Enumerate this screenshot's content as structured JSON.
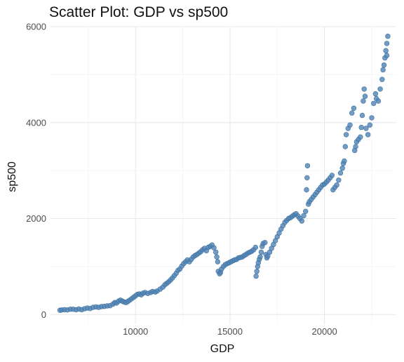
{
  "chart_data": {
    "type": "scatter",
    "title": "Scatter Plot: GDP vs sp500",
    "xlabel": "GDP",
    "ylabel": "sp500",
    "xlim": [
      5500,
      23800
    ],
    "ylim": [
      -200,
      6000
    ],
    "x_ticks": [
      10000,
      15000,
      20000
    ],
    "x_tick_labels": [
      "10000",
      "15000",
      "20000"
    ],
    "y_ticks": [
      0,
      2000,
      4000,
      6000
    ],
    "y_tick_labels": [
      "0",
      "2000",
      "4000",
      "6000"
    ],
    "grid": true,
    "point_color": "#4f83b5",
    "point_stroke": "#3d6f9e",
    "points": [
      [
        6000,
        90
      ],
      [
        6100,
        95
      ],
      [
        6250,
        100
      ],
      [
        6400,
        95
      ],
      [
        6550,
        110
      ],
      [
        6700,
        110
      ],
      [
        6850,
        100
      ],
      [
        7000,
        115
      ],
      [
        7150,
        100
      ],
      [
        7300,
        120
      ],
      [
        7450,
        135
      ],
      [
        7600,
        125
      ],
      [
        7750,
        150
      ],
      [
        7900,
        160
      ],
      [
        8050,
        150
      ],
      [
        8200,
        165
      ],
      [
        8350,
        170
      ],
      [
        8500,
        180
      ],
      [
        8650,
        185
      ],
      [
        8800,
        215
      ],
      [
        8900,
        250
      ],
      [
        9000,
        240
      ],
      [
        9100,
        280
      ],
      [
        9200,
        300
      ],
      [
        9300,
        280
      ],
      [
        9400,
        260
      ],
      [
        9500,
        250
      ],
      [
        9600,
        275
      ],
      [
        9700,
        300
      ],
      [
        9800,
        330
      ],
      [
        9900,
        360
      ],
      [
        10000,
        390
      ],
      [
        10100,
        420
      ],
      [
        10200,
        430
      ],
      [
        10300,
        410
      ],
      [
        10400,
        445
      ],
      [
        10500,
        460
      ],
      [
        10650,
        440
      ],
      [
        10800,
        460
      ],
      [
        10900,
        480
      ],
      [
        11050,
        470
      ],
      [
        11150,
        490
      ],
      [
        11300,
        530
      ],
      [
        11450,
        570
      ],
      [
        11550,
        620
      ],
      [
        11650,
        650
      ],
      [
        11750,
        680
      ],
      [
        11850,
        720
      ],
      [
        11950,
        760
      ],
      [
        12050,
        810
      ],
      [
        12150,
        860
      ],
      [
        12250,
        920
      ],
      [
        12350,
        950
      ],
      [
        12450,
        1010
      ],
      [
        12550,
        1060
      ],
      [
        12650,
        1100
      ],
      [
        12750,
        1140
      ],
      [
        12850,
        1100
      ],
      [
        12950,
        1150
      ],
      [
        13050,
        1200
      ],
      [
        13150,
        1230
      ],
      [
        13250,
        1250
      ],
      [
        13350,
        1280
      ],
      [
        13450,
        1310
      ],
      [
        13550,
        1350
      ],
      [
        13650,
        1380
      ],
      [
        13750,
        1330
      ],
      [
        13850,
        1400
      ],
      [
        13950,
        1420
      ],
      [
        14050,
        1450
      ],
      [
        14150,
        1390
      ],
      [
        14250,
        1300
      ],
      [
        14300,
        1200
      ],
      [
        14350,
        1100
      ],
      [
        14380,
        900
      ],
      [
        14450,
        850
      ],
      [
        14500,
        880
      ],
      [
        14550,
        950
      ],
      [
        14650,
        1000
      ],
      [
        14750,
        1040
      ],
      [
        14850,
        1060
      ],
      [
        14950,
        1080
      ],
      [
        15050,
        1100
      ],
      [
        15150,
        1120
      ],
      [
        15250,
        1140
      ],
      [
        15350,
        1150
      ],
      [
        15450,
        1180
      ],
      [
        15550,
        1190
      ],
      [
        15650,
        1200
      ],
      [
        15750,
        1230
      ],
      [
        15850,
        1250
      ],
      [
        15950,
        1280
      ],
      [
        16050,
        1300
      ],
      [
        16150,
        1320
      ],
      [
        16250,
        1350
      ],
      [
        16350,
        1400
      ],
      [
        16380,
        800
      ],
      [
        16420,
        900
      ],
      [
        16460,
        1000
      ],
      [
        16500,
        1080
      ],
      [
        16550,
        1150
      ],
      [
        16600,
        1200
      ],
      [
        16650,
        1300
      ],
      [
        16700,
        1420
      ],
      [
        16750,
        1480
      ],
      [
        16850,
        1500
      ],
      [
        16900,
        1250
      ],
      [
        16950,
        1180
      ],
      [
        17000,
        1220
      ],
      [
        17100,
        1300
      ],
      [
        17200,
        1380
      ],
      [
        17300,
        1460
      ],
      [
        17400,
        1540
      ],
      [
        17500,
        1620
      ],
      [
        17600,
        1700
      ],
      [
        17700,
        1780
      ],
      [
        17800,
        1850
      ],
      [
        17900,
        1920
      ],
      [
        18000,
        1960
      ],
      [
        18100,
        2000
      ],
      [
        18200,
        2020
      ],
      [
        18300,
        2050
      ],
      [
        18400,
        2080
      ],
      [
        18500,
        2100
      ],
      [
        18600,
        2050
      ],
      [
        18700,
        2000
      ],
      [
        18800,
        1950
      ],
      [
        18900,
        2060
      ],
      [
        19000,
        2150
      ],
      [
        19050,
        2600
      ],
      [
        19080,
        2850
      ],
      [
        19100,
        3100
      ],
      [
        19150,
        2300
      ],
      [
        19200,
        2350
      ],
      [
        19300,
        2400
      ],
      [
        19400,
        2450
      ],
      [
        19500,
        2500
      ],
      [
        19600,
        2550
      ],
      [
        19700,
        2600
      ],
      [
        19800,
        2650
      ],
      [
        19900,
        2700
      ],
      [
        20000,
        2720
      ],
      [
        20100,
        2760
      ],
      [
        20200,
        2800
      ],
      [
        20300,
        2850
      ],
      [
        20400,
        2900
      ],
      [
        20450,
        2600
      ],
      [
        20550,
        2650
      ],
      [
        20650,
        2700
      ],
      [
        20750,
        2800
      ],
      [
        20850,
        2950
      ],
      [
        20950,
        3050
      ],
      [
        21000,
        3150
      ],
      [
        21050,
        3200
      ],
      [
        21100,
        3500
      ],
      [
        21150,
        3750
      ],
      [
        21250,
        3880
      ],
      [
        21350,
        3950
      ],
      [
        21450,
        4200
      ],
      [
        21550,
        4300
      ],
      [
        21600,
        3420
      ],
      [
        21650,
        3500
      ],
      [
        21700,
        3600
      ],
      [
        21800,
        3650
      ],
      [
        21900,
        3700
      ],
      [
        21950,
        3900
      ],
      [
        22000,
        4150
      ],
      [
        22050,
        4450
      ],
      [
        22100,
        4700
      ],
      [
        22150,
        4550
      ],
      [
        22200,
        3880
      ],
      [
        22300,
        3750
      ],
      [
        22400,
        3950
      ],
      [
        22500,
        4100
      ],
      [
        22600,
        4400
      ],
      [
        22700,
        4600
      ],
      [
        22750,
        4500
      ],
      [
        22850,
        4450
      ],
      [
        22950,
        4700
      ],
      [
        23050,
        4900
      ],
      [
        23100,
        5100
      ],
      [
        23150,
        5200
      ],
      [
        23200,
        5350
      ],
      [
        23250,
        5500
      ],
      [
        23300,
        5650
      ],
      [
        23350,
        5800
      ],
      [
        23300,
        5400
      ]
    ]
  }
}
